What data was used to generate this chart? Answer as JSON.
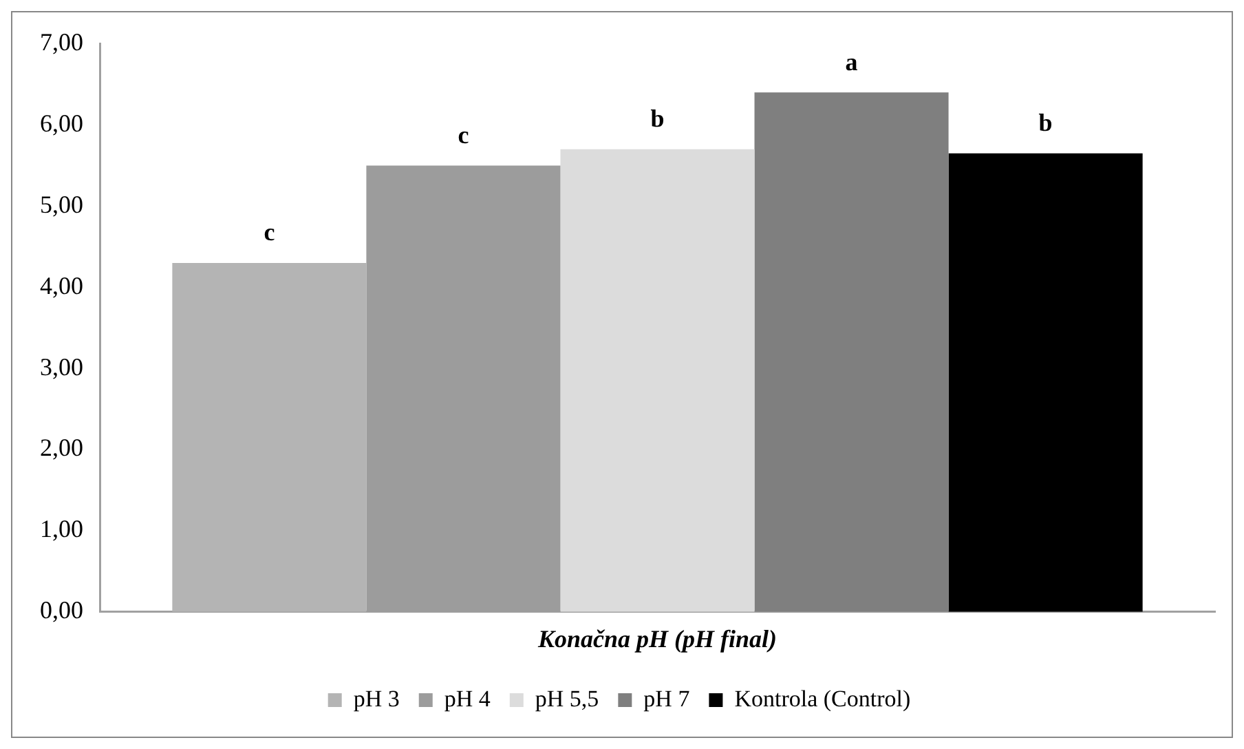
{
  "chart_data": {
    "type": "bar",
    "categories": [
      "Konačna pH (pH final)"
    ],
    "series": [
      {
        "name": "pH 3",
        "color": "#b4b4b4",
        "values": [
          4.3
        ]
      },
      {
        "name": "pH 4",
        "color": "#9c9c9c",
        "values": [
          5.5
        ]
      },
      {
        "name": "pH 5,5",
        "color": "#dcdcdc",
        "values": [
          5.7
        ]
      },
      {
        "name": "pH 7",
        "color": "#7f7f7f",
        "values": [
          6.4
        ]
      },
      {
        "name": "Kontrola (Control)",
        "color": "#000000",
        "values": [
          5.65
        ]
      }
    ],
    "annotations": [
      "c",
      "c",
      "b",
      "a",
      "b"
    ],
    "ylim": [
      0,
      7
    ],
    "yticks": [
      {
        "value": 0,
        "label": "0,00"
      },
      {
        "value": 1,
        "label": "1,00"
      },
      {
        "value": 2,
        "label": "2,00"
      },
      {
        "value": 3,
        "label": "3,00"
      },
      {
        "value": 4,
        "label": "4,00"
      },
      {
        "value": 5,
        "label": "5,00"
      },
      {
        "value": 6,
        "label": "6,00"
      },
      {
        "value": 7,
        "label": "7,00"
      }
    ],
    "grid": false,
    "legend": "bottom"
  }
}
